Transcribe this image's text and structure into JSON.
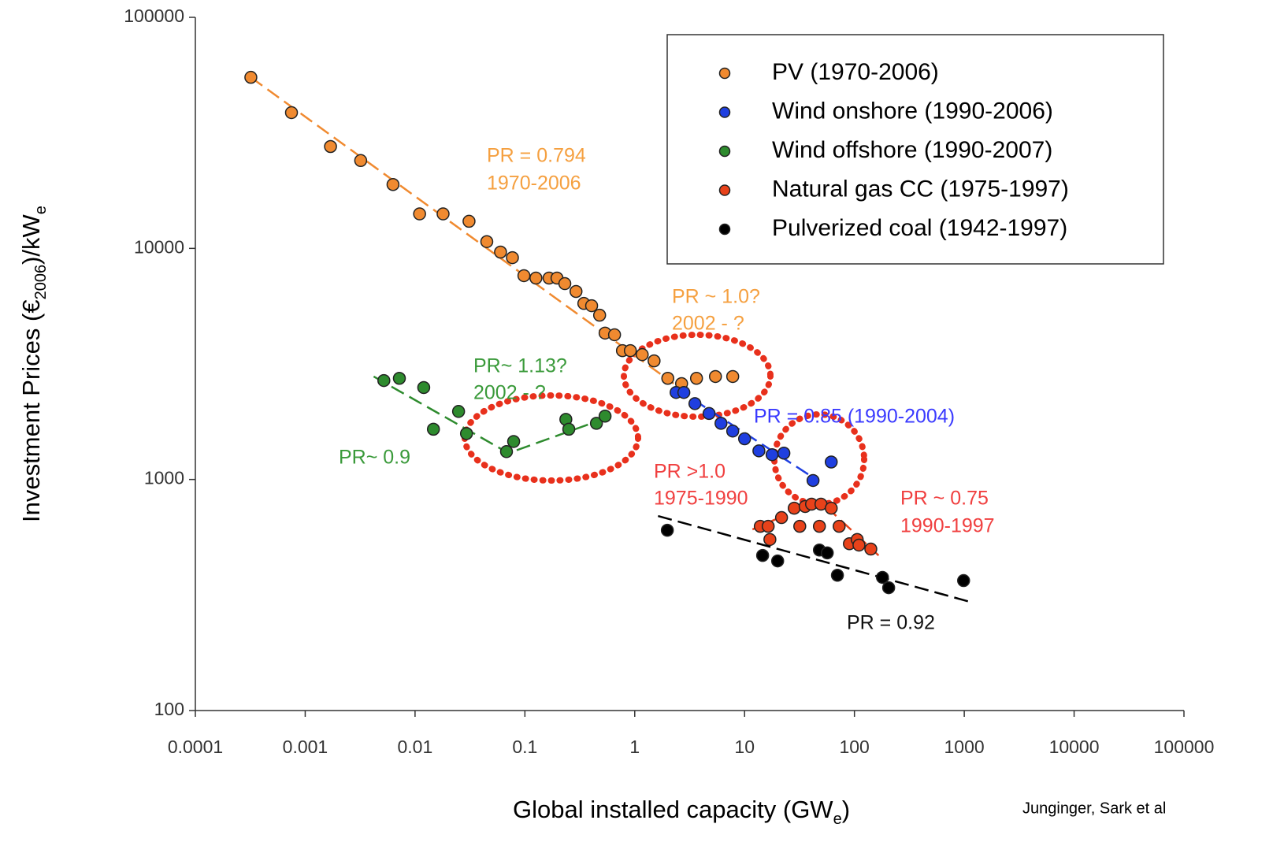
{
  "chart_data": {
    "type": "scatter",
    "xscale": "log",
    "yscale": "log",
    "xlim": [
      0.0001,
      100000
    ],
    "ylim": [
      100,
      100000
    ],
    "xticks": [
      0.0001,
      0.001,
      0.01,
      0.1,
      1,
      10,
      100,
      1000,
      10000,
      100000
    ],
    "yticks": [
      100,
      1000,
      10000,
      100000
    ],
    "xlabel": [
      "Global installed capacity (GW",
      "e",
      ")"
    ],
    "ylabel": [
      "Investment Prices (€",
      "2006",
      ")/kW",
      "e"
    ],
    "legend": "upper right",
    "source": "Junginger, Sark et al",
    "series": [
      {
        "name": "PV (1970-2006)",
        "color": "#f08a30",
        "x": [
          0.00032,
          0.00075,
          0.0017,
          0.0032,
          0.0063,
          0.011,
          0.018,
          0.031,
          0.045,
          0.06,
          0.077,
          0.098,
          0.126,
          0.166,
          0.196,
          0.231,
          0.292,
          0.344,
          0.405,
          0.479,
          0.537,
          0.655,
          0.773,
          0.912,
          1.17,
          1.5,
          2.0,
          2.67,
          3.65,
          5.43,
          7.8
        ],
        "y": [
          55000,
          38700,
          27600,
          24000,
          18900,
          14100,
          14100,
          13100,
          10700,
          9640,
          9120,
          7620,
          7440,
          7440,
          7440,
          7040,
          6510,
          5780,
          5650,
          5140,
          4300,
          4230,
          3610,
          3610,
          3470,
          3260,
          2740,
          2600,
          2740,
          2790,
          2790
        ],
        "fit": {
          "x": [
            0.00032,
            2.26
          ],
          "y": [
            55000,
            2600
          ]
        }
      },
      {
        "name": "Wind onshore (1990-2006)",
        "color": "#1f3fe0",
        "x": [
          2.38,
          2.8,
          3.53,
          4.75,
          6.1,
          7.8,
          10,
          13.5,
          17.8,
          22.8,
          42,
          61.5
        ],
        "y": [
          2380,
          2380,
          2130,
          1930,
          1750,
          1620,
          1500,
          1330,
          1280,
          1300,
          990,
          1190
        ],
        "fit": {
          "x": [
            2.38,
            40.7
          ],
          "y": [
            2480,
            1030
          ]
        }
      },
      {
        "name": "Wind offshore (1990-2007)",
        "color": "#2e8b2e",
        "x": [
          0.0052,
          0.0072,
          0.012,
          0.0147,
          0.0249,
          0.0294,
          0.068,
          0.079,
          0.236,
          0.251,
          0.448,
          0.537
        ],
        "y": [
          2680,
          2740,
          2500,
          1650,
          1970,
          1580,
          1320,
          1460,
          1820,
          1650,
          1750,
          1880
        ],
        "fit": {
          "x": [
            0.0042,
            0.071,
            0.56
          ],
          "y": [
            2790,
            1300,
            1850
          ]
        }
      },
      {
        "name": "Natural gas CC (1975-1997)",
        "color": "#e8421a",
        "x": [
          13.9,
          16.4,
          17,
          21.7,
          28.3,
          31.8,
          35.6,
          40.7,
          48,
          49.6,
          61.5,
          72.6,
          90,
          106,
          110,
          141
        ],
        "y": [
          627,
          627,
          550,
          684,
          751,
          627,
          764,
          782,
          627,
          782,
          751,
          627,
          527,
          550,
          520,
          500
        ],
        "fit": {
          "x": [
            11.8,
            48,
            166
          ],
          "y": [
            608,
            813,
            469
          ]
        }
      },
      {
        "name": "Pulverized coal (1942-1997)",
        "color": "#000000",
        "x": [
          1.98,
          14.6,
          20,
          48,
          56.6,
          70,
          180,
          205,
          986
        ],
        "y": [
          603,
          469,
          444,
          495,
          481,
          385,
          377,
          340,
          365
        ],
        "fit": {
          "x": [
            1.63,
            1200
          ],
          "y": [
            695,
            293
          ]
        }
      }
    ],
    "annotations": [
      {
        "text": "PR = 0.794",
        "color": "#f5a040"
      },
      {
        "text": "1970-2006",
        "color": "#f5a040"
      },
      {
        "text": "PR  ~ 1.0?",
        "color": "#f5a040"
      },
      {
        "text": "2002 - ?",
        "color": "#f5a040"
      },
      {
        "text": "PR~ 1.13?",
        "color": "#3a9a3a"
      },
      {
        "text": "2002 - ?",
        "color": "#3a9a3a"
      },
      {
        "text": "PR~ 0.9",
        "color": "#3a9a3a"
      },
      {
        "text": "PR = 0.85 (1990-2004)",
        "color": "#3a3aff"
      },
      {
        "text": "PR >1.0",
        "color": "#f04040"
      },
      {
        "text": "1975-1990",
        "color": "#f04040"
      },
      {
        "text": "PR ~ 0.75",
        "color": "#f04040"
      },
      {
        "text": "1990-1997",
        "color": "#f04040"
      },
      {
        "text": "PR = 0.92",
        "color": "#111111"
      }
    ]
  }
}
